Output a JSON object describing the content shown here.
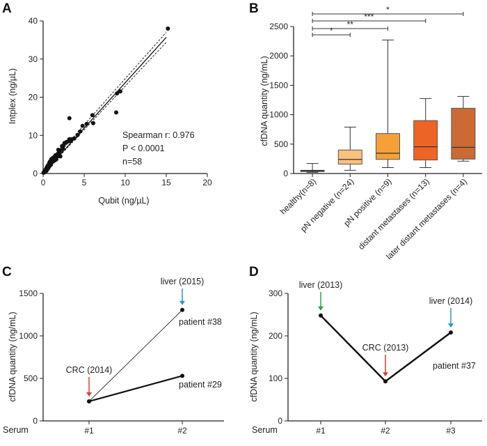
{
  "figure": {
    "panels": [
      {
        "letter": "A"
      },
      {
        "letter": "B"
      },
      {
        "letter": "C"
      },
      {
        "letter": "D"
      }
    ]
  },
  "chart_data": [
    {
      "panel": "A",
      "type": "scatter",
      "xlabel": "Qubit (ng/µL)",
      "ylabel": "Intplex (ng/µL)",
      "xlim": [
        0,
        20
      ],
      "ylim": [
        0,
        40
      ],
      "xticks": [
        0,
        5,
        10,
        15,
        20
      ],
      "yticks": [
        0,
        10,
        20,
        30,
        40
      ],
      "annotations": [
        "Spearman r: 0.976",
        "P < 0.0001",
        "n=58"
      ],
      "points": [
        [
          0.05,
          0.2
        ],
        [
          0.1,
          0.4
        ],
        [
          0.15,
          0.3
        ],
        [
          0.2,
          0.8
        ],
        [
          0.25,
          0.5
        ],
        [
          0.3,
          1.0
        ],
        [
          0.35,
          0.6
        ],
        [
          0.4,
          1.4
        ],
        [
          0.45,
          0.9
        ],
        [
          0.5,
          1.8
        ],
        [
          0.55,
          1.2
        ],
        [
          0.6,
          2.2
        ],
        [
          0.65,
          1.5
        ],
        [
          0.7,
          1.8
        ],
        [
          0.75,
          2.8
        ],
        [
          0.8,
          2.0
        ],
        [
          0.85,
          3.2
        ],
        [
          0.9,
          2.5
        ],
        [
          0.95,
          2.3
        ],
        [
          1.0,
          3.8
        ],
        [
          1.05,
          2.9
        ],
        [
          1.1,
          3.3
        ],
        [
          1.15,
          3.6
        ],
        [
          1.2,
          4.1
        ],
        [
          1.25,
          3.2
        ],
        [
          1.3,
          3.9
        ],
        [
          1.4,
          4.4
        ],
        [
          1.45,
          3.5
        ],
        [
          1.5,
          4.8
        ],
        [
          1.6,
          3.7
        ],
        [
          1.7,
          4.4
        ],
        [
          1.8,
          5.2
        ],
        [
          1.85,
          6.2
        ],
        [
          1.9,
          4.6
        ],
        [
          2.0,
          5.6
        ],
        [
          2.1,
          4.5
        ],
        [
          2.2,
          6.2
        ],
        [
          2.3,
          7.2
        ],
        [
          2.4,
          6.6
        ],
        [
          2.5,
          7.4
        ],
        [
          2.6,
          8.0
        ],
        [
          2.8,
          8.2
        ],
        [
          3.0,
          8.4
        ],
        [
          3.2,
          9.0
        ],
        [
          3.2,
          14.5
        ],
        [
          3.3,
          8.5
        ],
        [
          3.5,
          9.0
        ],
        [
          3.8,
          9.2
        ],
        [
          4.2,
          10.1
        ],
        [
          4.5,
          11.0
        ],
        [
          4.8,
          12.5
        ],
        [
          5.3,
          13.0
        ],
        [
          6.0,
          15.3
        ],
        [
          6.1,
          13.2
        ],
        [
          8.9,
          16.0
        ],
        [
          9.0,
          21.0
        ],
        [
          9.4,
          21.5
        ],
        [
          15.2,
          38.0
        ]
      ],
      "fit": {
        "x": [
          0,
          15
        ],
        "y": [
          0,
          35.7
        ]
      },
      "ci_upper": {
        "x": [
          0,
          15
        ],
        "y": [
          0.6,
          37.0
        ]
      },
      "ci_lower": {
        "x": [
          0,
          15
        ],
        "y": [
          -0.6,
          34.4
        ]
      }
    },
    {
      "panel": "B",
      "type": "box",
      "ylabel": "cfDNA quantity (ng/mL)",
      "ylim": [
        0,
        2500
      ],
      "yticks": [
        0,
        500,
        1000,
        1500,
        2000,
        2500
      ],
      "categories": [
        "healthy(n=8)",
        "pN negative (n=24)",
        "pN positive (n=9)",
        "distant metastases (n=13)",
        "later distant metastases (n=4)"
      ],
      "colors": [
        "#ffffff",
        "#fcc07e",
        "#f5a137",
        "#ee6424",
        "#cb6a32"
      ],
      "boxes": [
        {
          "min": 20,
          "q1": 35,
          "median": 45,
          "q3": 55,
          "max": 170
        },
        {
          "min": 55,
          "q1": 160,
          "median": 240,
          "q3": 400,
          "max": 790
        },
        {
          "min": 100,
          "q1": 240,
          "median": 345,
          "q3": 680,
          "max": 2270
        },
        {
          "min": 100,
          "q1": 230,
          "median": 455,
          "q3": 900,
          "max": 1275
        },
        {
          "min": 210,
          "q1": 245,
          "median": 445,
          "q3": 1110,
          "max": 1310
        }
      ],
      "significance": [
        {
          "from": 0,
          "to": 1,
          "label": "*"
        },
        {
          "from": 0,
          "to": 2,
          "label": "**"
        },
        {
          "from": 0,
          "to": 3,
          "label": "***"
        },
        {
          "from": 0,
          "to": 4,
          "label": "*"
        }
      ]
    },
    {
      "panel": "C",
      "type": "line",
      "ylabel": "cfDNA quantity (ng/mL)",
      "xlabel": "Serum",
      "categories": [
        "#1",
        "#2"
      ],
      "ylim": [
        0,
        1500
      ],
      "yticks": [
        0,
        500,
        1000,
        1500
      ],
      "series": [
        {
          "name": "patient #38",
          "values": [
            230,
            1305
          ]
        },
        {
          "name": "patient #29",
          "values": [
            230,
            530
          ]
        }
      ],
      "events": [
        {
          "label": "CRC (2014)",
          "x": 0,
          "y": 230,
          "color": "#e23b2e"
        },
        {
          "label": "liver (2015)",
          "x": 1,
          "y": 1305,
          "color": "#2f8fd8"
        }
      ]
    },
    {
      "panel": "D",
      "type": "line",
      "ylabel": "cfDNA quantity (ng/mL)",
      "xlabel": "Serum",
      "categories": [
        "#1",
        "#2",
        "#3"
      ],
      "ylim": [
        0,
        300
      ],
      "yticks": [
        0,
        100,
        200,
        300
      ],
      "series": [
        {
          "name": "patient #37",
          "values": [
            248,
            93,
            208
          ]
        }
      ],
      "events": [
        {
          "label": "liver (2013)",
          "x": 0,
          "y": 248,
          "color": "#2fa34a"
        },
        {
          "label": "CRC (2013)",
          "x": 1,
          "y": 93,
          "color": "#e23b2e"
        },
        {
          "label": "liver (2014)",
          "x": 2,
          "y": 208,
          "color": "#2f8fd8"
        }
      ]
    }
  ]
}
